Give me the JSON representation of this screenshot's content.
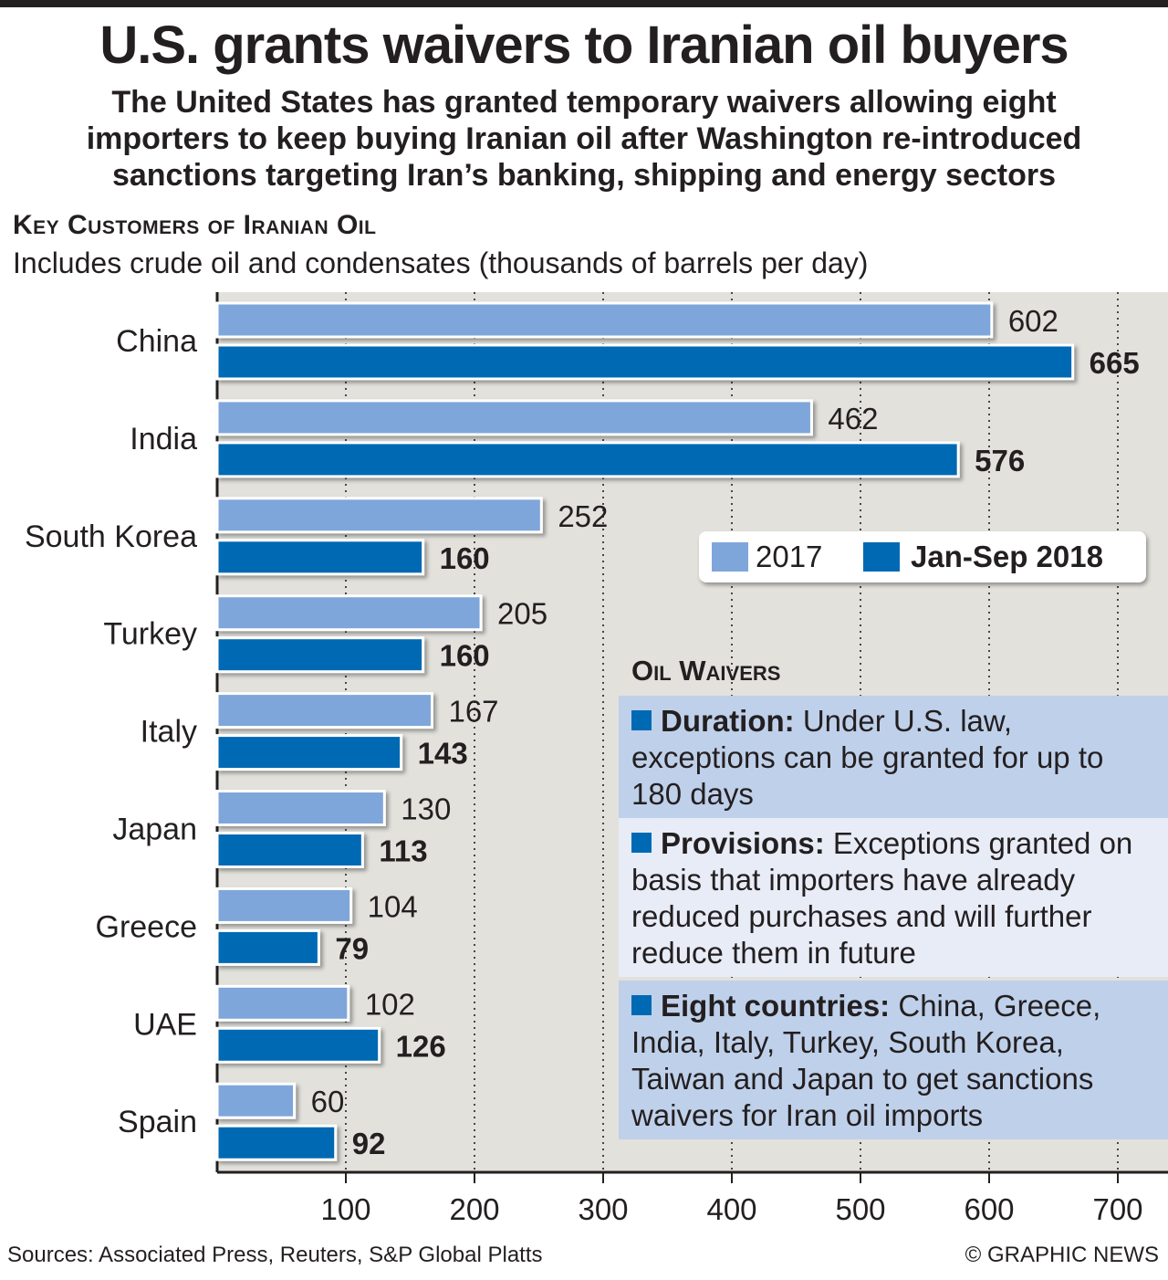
{
  "header": {
    "title": "U.S. grants waivers to Iranian oil buyers",
    "subtitle": "The United States has granted temporary waivers allowing eight importers to keep buying Iranian oil after Washington re-introduced sanctions targeting Iran’s banking, shipping and energy sectors"
  },
  "section": {
    "heading": "Key Customers of Iranian Oil",
    "subheading": "Includes crude oil and condensates (thousands of barrels per day)"
  },
  "chart_data": {
    "type": "bar",
    "orientation": "horizontal",
    "title": "Key Customers of Iranian Oil",
    "subtitle": "Includes crude oil and condensates (thousands of barrels per day)",
    "categories": [
      "China",
      "India",
      "South Korea",
      "Turkey",
      "Italy",
      "Japan",
      "Greece",
      "UAE",
      "Spain"
    ],
    "series": [
      {
        "name": "2017",
        "values": [
          602,
          462,
          252,
          205,
          167,
          130,
          104,
          102,
          60
        ],
        "color": "#7fa6da",
        "label_bold": false
      },
      {
        "name": "Jan-Sep 2018",
        "values": [
          665,
          576,
          160,
          160,
          143,
          113,
          79,
          126,
          92
        ],
        "color": "#0069b4",
        "label_bold": true
      }
    ],
    "xticks": [
      100,
      200,
      300,
      400,
      500,
      600,
      700
    ],
    "xlim": [
      0,
      735
    ],
    "grid": true,
    "legend": "right"
  },
  "legend": {
    "items": [
      {
        "label": "2017",
        "color": "#7fa6da"
      },
      {
        "label": "Jan-Sep 2018",
        "color": "#0069b4"
      }
    ]
  },
  "waivers": {
    "heading": "Oil Waivers",
    "items": [
      {
        "label": "Duration:",
        "text": "Under U.S. law, exceptions can be granted for up to 180 days"
      },
      {
        "label": "Provisions:",
        "text": "Exceptions granted on basis that importers have already reduced purchases and will further reduce them in future"
      },
      {
        "label": "Eight countries:",
        "text": "China, Greece, India, Italy, Turkey, South Korea, Taiwan and Japan to get sanctions waivers for Iran oil imports"
      }
    ]
  },
  "footer": {
    "sources": "Sources: Associated Press, Reuters, S&P Global Platts",
    "copyright": "© GRAPHIC NEWS"
  },
  "colors": {
    "plot_background": "#e2e1dc",
    "light_bar": "#7fa6da",
    "dark_bar": "#0069b4",
    "text": "#231f20"
  }
}
